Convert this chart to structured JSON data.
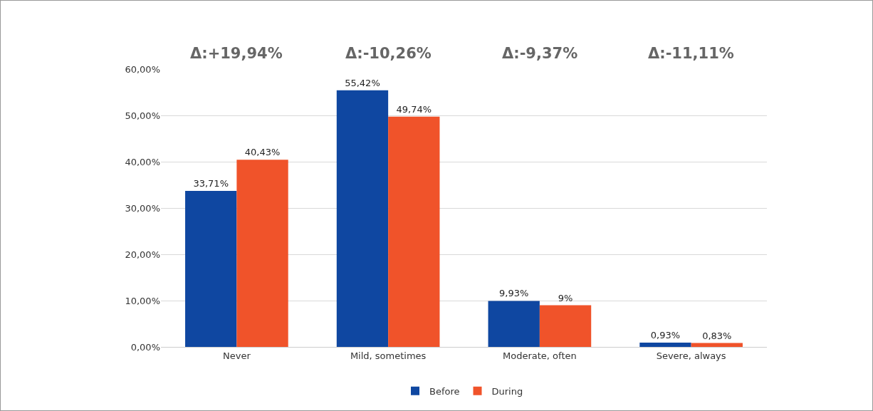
{
  "chart_data": {
    "type": "bar",
    "categories": [
      "Never",
      "Mild, sometimes",
      "Moderate, often",
      "Severe, always"
    ],
    "series": [
      {
        "name": "Before",
        "color": "#0f47a1",
        "values": [
          33.71,
          55.42,
          9.93,
          0.93
        ],
        "value_labels": [
          "33,71%",
          "55,42%",
          "9,93%",
          "0,93%"
        ]
      },
      {
        "name": "During",
        "color": "#f0532a",
        "values": [
          40.43,
          49.74,
          9,
          0.83
        ],
        "value_labels": [
          "40,43%",
          "49,74%",
          "9%",
          "0,83%"
        ]
      }
    ],
    "annotations": [
      "Δ:+19,94%",
      "Δ:-10,26%",
      "Δ:-9,37%",
      "Δ:-11,11%"
    ],
    "ylim": [
      0,
      60
    ],
    "yticks": [
      {
        "value": 0,
        "label": "0,00%"
      },
      {
        "value": 10,
        "label": "10,00%"
      },
      {
        "value": 20,
        "label": "20,00%"
      },
      {
        "value": 30,
        "label": "30,00%"
      },
      {
        "value": 40,
        "label": "40,00%"
      },
      {
        "value": 50,
        "label": "50,00%"
      },
      {
        "value": 60,
        "label": "60,00%"
      }
    ],
    "grid": "y",
    "legend": "bottom"
  }
}
